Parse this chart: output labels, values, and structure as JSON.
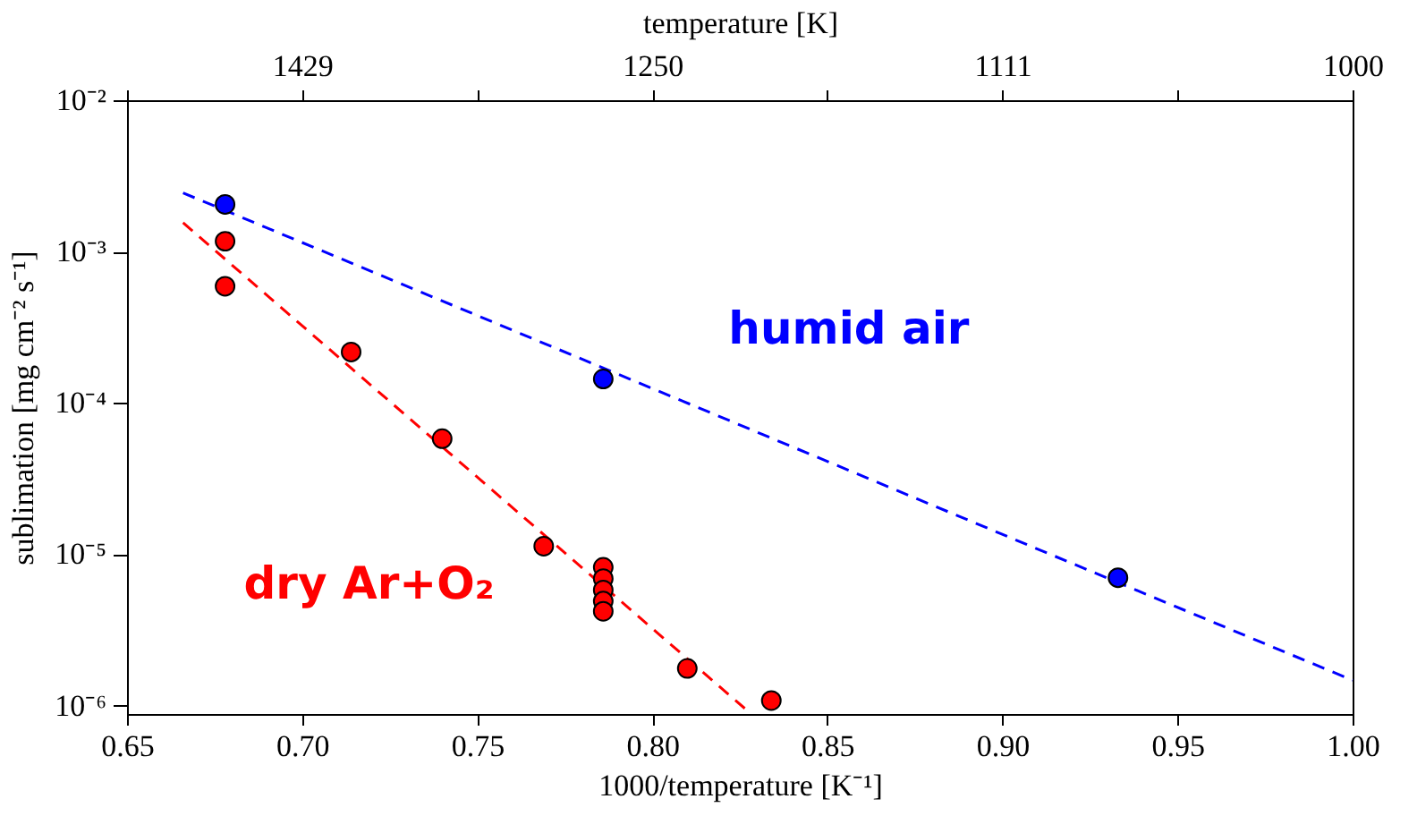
{
  "chart_data": {
    "type": "scatter",
    "xlabel": "1000/temperature [K⁻¹]",
    "ylabel": "sublimation [mg cm⁻² s⁻¹]",
    "x2label": "temperature [K]",
    "log": "y",
    "marker": "circle",
    "grid": false,
    "xlim": [
      0.65,
      1.0
    ],
    "xticks": [
      0.65,
      {
        "value": 0.7,
        "label": "0.70"
      },
      0.75,
      {
        "value": 0.8,
        "label": "0.80"
      },
      0.85,
      {
        "value": 0.9,
        "label": "0.90"
      },
      0.95,
      {
        "value": 1.0,
        "label": "1.00"
      }
    ],
    "annotations": [
      "1429",
      "1250",
      "1111",
      "1000"
    ],
    "ylim": [
      8.8e-07,
      0.01
    ],
    "yticks": [
      {
        "value": 1e-06,
        "label": "10⁻⁶"
      },
      {
        "value": 1e-05,
        "label": "10⁻⁵"
      },
      {
        "value": 0.0001,
        "label": "10⁻⁴"
      },
      {
        "value": 0.001,
        "label": "10⁻³"
      },
      {
        "value": 0.01,
        "label": "10⁻²"
      }
    ],
    "series": [
      {
        "name": "humid air",
        "color": "#0000ff",
        "x": [
          0.678,
          0.786,
          0.933
        ],
        "values": [
          0.00205,
          0.000144,
          7e-06
        ]
      },
      {
        "name": "dry Ar+O₂",
        "color": "#ff0000",
        "x": [
          0.678,
          0.678,
          0.714,
          0.74,
          0.769,
          0.786,
          0.786,
          0.786,
          0.786,
          0.786,
          0.81,
          0.834
        ],
        "values": [
          0.00117,
          0.00059,
          0.000217,
          5.8e-05,
          1.13e-05,
          8.2e-06,
          6.9e-06,
          5.8e-06,
          4.9e-06,
          4.2e-06,
          1.76e-06,
          1.08e-06
        ]
      },
      {
        "type": "line",
        "color": "#0000ff",
        "line_style": "dashed",
        "marker": "none",
        "x": [
          0.666,
          1.0
        ],
        "values": [
          0.00244,
          1.47e-06
        ]
      },
      {
        "type": "line",
        "color": "#ff0000",
        "line_style": "dashed",
        "marker": "none",
        "x": [
          0.666,
          0.8266
        ],
        "values": [
          0.00155,
          9.5e-07
        ]
      }
    ]
  }
}
